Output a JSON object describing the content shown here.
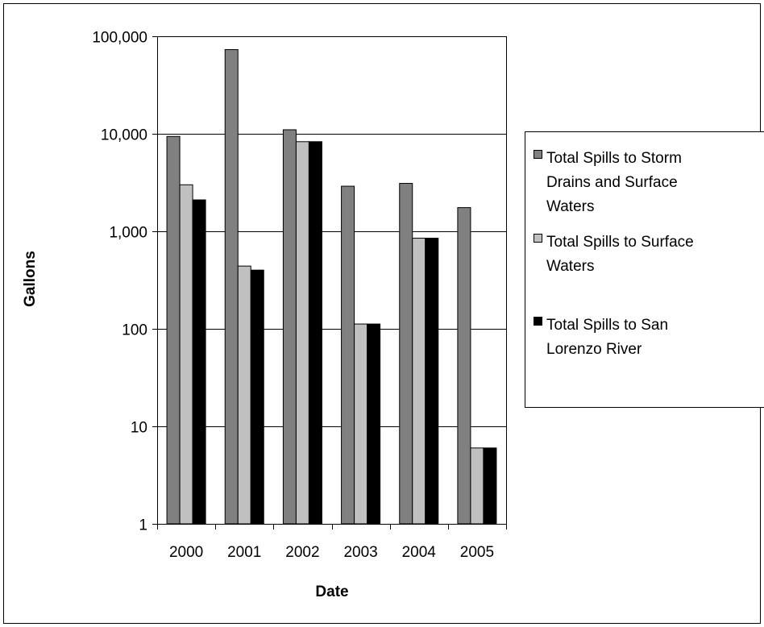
{
  "chart_data": {
    "type": "bar",
    "title": "",
    "xlabel": "Date",
    "ylabel": "Gallons",
    "yscale": "log",
    "ylim": [
      1,
      100000
    ],
    "y_ticks": [
      1,
      10,
      100,
      1000,
      10000,
      100000
    ],
    "y_tick_labels": [
      "1",
      "10",
      "100",
      "1,000",
      "10,000",
      "100,000"
    ],
    "grid": "horizontal",
    "legend_position": "right",
    "categories": [
      "2000",
      "2001",
      "2002",
      "2003",
      "2004",
      "2005"
    ],
    "series": [
      {
        "name": "Total Spills to Storm Drains and Surface Waters",
        "legend_lines": [
          "Total Spills to Storm",
          "Drains and Surface",
          "Waters"
        ],
        "color": "#808080",
        "values": [
          9400,
          73000,
          11000,
          2900,
          3100,
          1750
        ]
      },
      {
        "name": "Total Spills to  Surface Waters",
        "legend_lines": [
          "Total Spills to  Surface",
          "Waters"
        ],
        "color": "#c0c0c0",
        "values": [
          3000,
          440,
          8300,
          112,
          850,
          6
        ]
      },
      {
        "name": "Total Spills to San Lorenzo River",
        "legend_lines": [
          "Total Spills to San",
          "Lorenzo River"
        ],
        "color": "#000000",
        "values": [
          2100,
          400,
          8300,
          112,
          850,
          6
        ]
      }
    ]
  }
}
